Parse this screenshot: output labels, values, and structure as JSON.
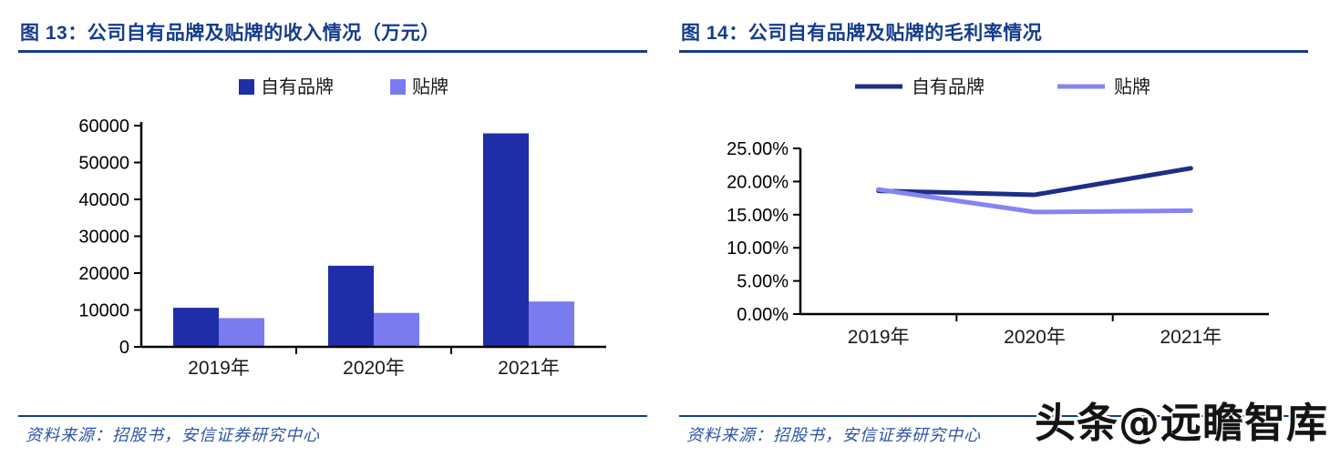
{
  "page": {
    "watermark": "头条@远瞻智库"
  },
  "figure13": {
    "label": "图 13：",
    "title": "图 13：公司自有品牌及贴牌的收入情况（万元）",
    "source": "资料来源：招股书，安信证券研究中心"
  },
  "figure14": {
    "label": "图 14：",
    "title": "图 14：公司自有品牌及贴牌的毛利率情况",
    "source": "资料来源：招股书，安信证券研究中心"
  },
  "colors": {
    "title_navy": "#143C8C",
    "source_blue": "#2E55A5",
    "bar_dark": "#1F2DA8",
    "bar_light": "#7B7BF0",
    "line_dark": "#1C2E87",
    "line_light": "#8484F2",
    "axis_black": "#000000",
    "watermark_black": "#141414"
  },
  "chart_data": [
    {
      "type": "bar",
      "title": "公司自有品牌及贴牌的收入情况（万元）",
      "categories": [
        "2019年",
        "2020年",
        "2021年"
      ],
      "series": [
        {
          "name": "自有品牌",
          "color": "#1F2DA8",
          "values": [
            10600,
            22000,
            57900
          ]
        },
        {
          "name": "贴牌",
          "color": "#7B7BF0",
          "values": [
            7800,
            9200,
            12300
          ]
        }
      ],
      "ylim": [
        0,
        60000
      ],
      "ytick_step": 10000,
      "yticklabels": [
        "0",
        "10000",
        "20000",
        "30000",
        "40000",
        "50000",
        "60000"
      ],
      "grid": false,
      "legend_position": "top"
    },
    {
      "type": "line",
      "title": "公司自有品牌及贴牌的毛利率情况",
      "categories": [
        "2019年",
        "2020年",
        "2021年"
      ],
      "series": [
        {
          "name": "自有品牌",
          "color": "#1C2E87",
          "values": [
            18.6,
            18.0,
            22.0
          ]
        },
        {
          "name": "贴牌",
          "color": "#8484F2",
          "values": [
            18.8,
            15.4,
            15.6
          ]
        }
      ],
      "ylim": [
        0,
        25
      ],
      "ytick_step": 5,
      "yticklabels": [
        "0.00%",
        "5.00%",
        "10.00%",
        "15.00%",
        "20.00%",
        "25.00%"
      ],
      "grid": false,
      "legend_position": "top"
    }
  ]
}
